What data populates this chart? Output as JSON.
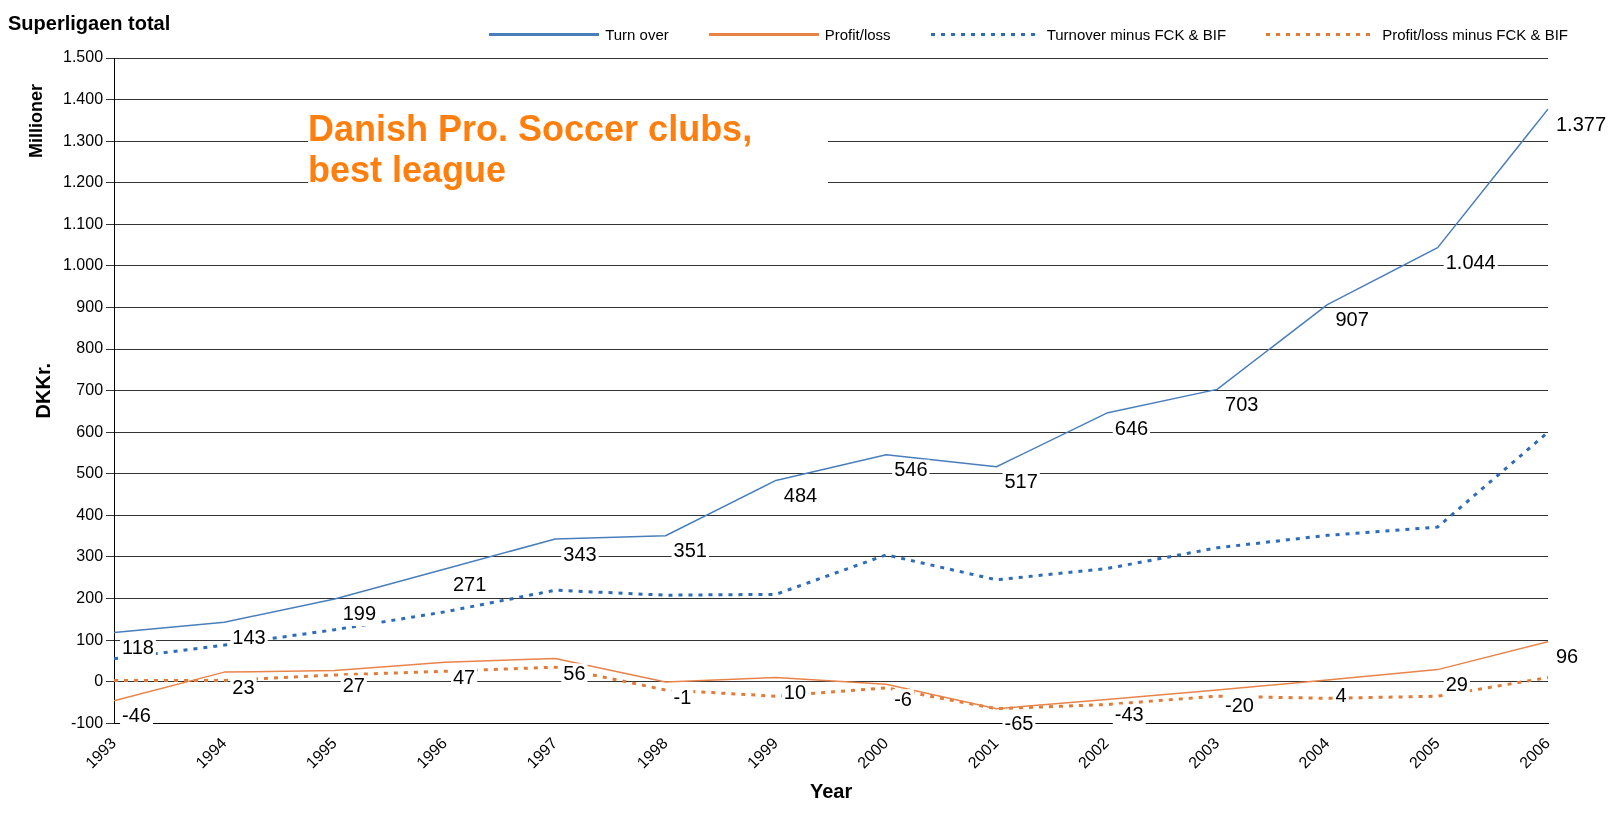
{
  "chart_data": {
    "type": "line",
    "title": "Superligaen total",
    "xlabel": "Year",
    "ylabel": "DKKr.",
    "annotations": [
      "Millioner",
      "Danish Pro. Soccer clubs, best league"
    ],
    "categories": [
      "1993",
      "1994",
      "1995",
      "1996",
      "1997",
      "1998",
      "1999",
      "2000",
      "2001",
      "2002",
      "2003",
      "2004",
      "2005",
      "2006"
    ],
    "series": [
      {
        "name": "Turn over",
        "color": "#4a7ebb",
        "line_style": "solid",
        "values": [
          118,
          143,
          199,
          271,
          343,
          351,
          484,
          546,
          517,
          646,
          703,
          907,
          1044,
          1377
        ],
        "value_labels": [
          "118",
          "143",
          "199",
          "271",
          "343",
          "351",
          "484",
          "546",
          "517",
          "646",
          "703",
          "907",
          "1.044",
          "1.377"
        ]
      },
      {
        "name": "Profit/loss",
        "color": "#e8844a",
        "line_style": "solid",
        "values": [
          -46,
          23,
          27,
          47,
          56,
          -1,
          10,
          -6,
          -65,
          -43,
          -20,
          4,
          29,
          96
        ],
        "value_labels": [
          "-46",
          "23",
          "27",
          "47",
          "56",
          "-1",
          "10",
          "-6",
          "-65",
          "-43",
          "-20",
          "4",
          "29",
          "96"
        ]
      },
      {
        "name": "Turnover minus FCK & BIF",
        "color": "#2e6bb8",
        "line_style": "dotted",
        "values": [
          55,
          88,
          125,
          168,
          220,
          208,
          210,
          305,
          245,
          272,
          322,
          352,
          372,
          600
        ]
      },
      {
        "name": "Profit/loss minus FCK & BIF",
        "color": "#e07b39",
        "line_style": "dotted",
        "values": [
          3,
          3,
          16,
          25,
          35,
          -20,
          -35,
          -15,
          -65,
          -55,
          -35,
          -40,
          -35,
          10
        ]
      }
    ],
    "ylim": [
      -100,
      1500
    ],
    "yticks": [
      -100,
      0,
      100,
      200,
      300,
      400,
      500,
      600,
      700,
      800,
      900,
      {
        "value": 1000,
        "label": "1.000"
      },
      {
        "value": 1100,
        "label": "1.100"
      },
      {
        "value": 1200,
        "label": "1.200"
      },
      {
        "value": 1300,
        "label": "1.300"
      },
      {
        "value": 1400,
        "label": "1.400"
      },
      {
        "value": 1500,
        "label": "1.500"
      }
    ],
    "grid": "y",
    "legend": "top",
    "marker": "none"
  }
}
